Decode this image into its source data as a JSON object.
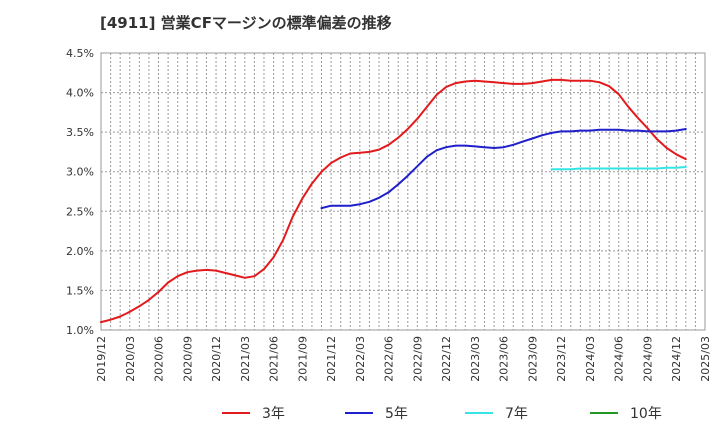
{
  "title": "[4911]  営業CFマージンの標準偏差の推移",
  "chart_data": {
    "type": "line",
    "title": "[4911]  営業CFマージンの標準偏差の推移",
    "xlabel": "",
    "ylabel": "",
    "ylim": [
      1.0,
      4.5
    ],
    "y_ticks": [
      "1.0%",
      "1.5%",
      "2.0%",
      "2.5%",
      "3.0%",
      "3.5%",
      "4.0%",
      "4.5%"
    ],
    "x_ticks": [
      "2019/12",
      "2020/03",
      "2020/06",
      "2020/09",
      "2020/12",
      "2021/03",
      "2021/06",
      "2021/09",
      "2021/12",
      "2022/03",
      "2022/06",
      "2022/09",
      "2022/12",
      "2023/03",
      "2023/06",
      "2023/09",
      "2023/12",
      "2024/03",
      "2024/06",
      "2024/09",
      "2024/12",
      "2025/03"
    ],
    "grid": true,
    "legend_position": "bottom",
    "series": [
      {
        "name": "3年",
        "color": "#e31a1c",
        "points": [
          [
            "2019/12",
            1.1
          ],
          [
            "2020/01",
            1.13
          ],
          [
            "2020/02",
            1.17
          ],
          [
            "2020/03",
            1.23
          ],
          [
            "2020/04",
            1.3
          ],
          [
            "2020/05",
            1.38
          ],
          [
            "2020/06",
            1.48
          ],
          [
            "2020/07",
            1.6
          ],
          [
            "2020/08",
            1.68
          ],
          [
            "2020/09",
            1.73
          ],
          [
            "2020/10",
            1.75
          ],
          [
            "2020/11",
            1.76
          ],
          [
            "2020/12",
            1.75
          ],
          [
            "2021/01",
            1.72
          ],
          [
            "2021/02",
            1.69
          ],
          [
            "2021/03",
            1.66
          ],
          [
            "2021/04",
            1.68
          ],
          [
            "2021/05",
            1.77
          ],
          [
            "2021/06",
            1.92
          ],
          [
            "2021/07",
            2.14
          ],
          [
            "2021/08",
            2.43
          ],
          [
            "2021/09",
            2.66
          ],
          [
            "2021/10",
            2.85
          ],
          [
            "2021/11",
            3.0
          ],
          [
            "2021/12",
            3.11
          ],
          [
            "2022/01",
            3.18
          ],
          [
            "2022/02",
            3.23
          ],
          [
            "2022/03",
            3.24
          ],
          [
            "2022/04",
            3.25
          ],
          [
            "2022/05",
            3.28
          ],
          [
            "2022/06",
            3.34
          ],
          [
            "2022/07",
            3.43
          ],
          [
            "2022/08",
            3.54
          ],
          [
            "2022/09",
            3.67
          ],
          [
            "2022/10",
            3.82
          ],
          [
            "2022/11",
            3.97
          ],
          [
            "2022/12",
            4.07
          ],
          [
            "2023/01",
            4.12
          ],
          [
            "2023/02",
            4.14
          ],
          [
            "2023/03",
            4.15
          ],
          [
            "2023/04",
            4.14
          ],
          [
            "2023/05",
            4.13
          ],
          [
            "2023/06",
            4.12
          ],
          [
            "2023/07",
            4.11
          ],
          [
            "2023/08",
            4.11
          ],
          [
            "2023/09",
            4.12
          ],
          [
            "2023/10",
            4.14
          ],
          [
            "2023/11",
            4.16
          ],
          [
            "2023/12",
            4.16
          ],
          [
            "2024/01",
            4.15
          ],
          [
            "2024/02",
            4.15
          ],
          [
            "2024/03",
            4.15
          ],
          [
            "2024/04",
            4.13
          ],
          [
            "2024/05",
            4.08
          ],
          [
            "2024/06",
            3.98
          ],
          [
            "2024/07",
            3.82
          ],
          [
            "2024/08",
            3.68
          ],
          [
            "2024/09",
            3.55
          ],
          [
            "2024/10",
            3.41
          ],
          [
            "2024/11",
            3.3
          ],
          [
            "2024/12",
            3.22
          ],
          [
            "2025/01",
            3.16
          ]
        ]
      },
      {
        "name": "5年",
        "color": "#1f1fcc",
        "points": [
          [
            "2021/11",
            2.54
          ],
          [
            "2021/12",
            2.57
          ],
          [
            "2022/01",
            2.57
          ],
          [
            "2022/02",
            2.57
          ],
          [
            "2022/03",
            2.59
          ],
          [
            "2022/04",
            2.62
          ],
          [
            "2022/05",
            2.67
          ],
          [
            "2022/06",
            2.74
          ],
          [
            "2022/07",
            2.84
          ],
          [
            "2022/08",
            2.95
          ],
          [
            "2022/09",
            3.07
          ],
          [
            "2022/10",
            3.19
          ],
          [
            "2022/11",
            3.27
          ],
          [
            "2022/12",
            3.31
          ],
          [
            "2023/01",
            3.33
          ],
          [
            "2023/02",
            3.33
          ],
          [
            "2023/03",
            3.32
          ],
          [
            "2023/04",
            3.31
          ],
          [
            "2023/05",
            3.3
          ],
          [
            "2023/06",
            3.31
          ],
          [
            "2023/07",
            3.34
          ],
          [
            "2023/08",
            3.38
          ],
          [
            "2023/09",
            3.42
          ],
          [
            "2023/10",
            3.46
          ],
          [
            "2023/11",
            3.49
          ],
          [
            "2023/12",
            3.51
          ],
          [
            "2024/01",
            3.51
          ],
          [
            "2024/02",
            3.52
          ],
          [
            "2024/03",
            3.52
          ],
          [
            "2024/04",
            3.53
          ],
          [
            "2024/05",
            3.53
          ],
          [
            "2024/06",
            3.53
          ],
          [
            "2024/07",
            3.52
          ],
          [
            "2024/08",
            3.52
          ],
          [
            "2024/09",
            3.51
          ],
          [
            "2024/10",
            3.51
          ],
          [
            "2024/11",
            3.51
          ],
          [
            "2024/12",
            3.52
          ],
          [
            "2025/01",
            3.54
          ]
        ]
      },
      {
        "name": "7年",
        "color": "#33e5e5",
        "points": [
          [
            "2023/11",
            3.03
          ],
          [
            "2023/12",
            3.03
          ],
          [
            "2024/01",
            3.03
          ],
          [
            "2024/02",
            3.04
          ],
          [
            "2024/03",
            3.04
          ],
          [
            "2024/04",
            3.04
          ],
          [
            "2024/05",
            3.04
          ],
          [
            "2024/06",
            3.04
          ],
          [
            "2024/07",
            3.04
          ],
          [
            "2024/08",
            3.04
          ],
          [
            "2024/09",
            3.04
          ],
          [
            "2024/10",
            3.04
          ],
          [
            "2024/11",
            3.05
          ],
          [
            "2024/12",
            3.05
          ],
          [
            "2025/01",
            3.06
          ]
        ]
      },
      {
        "name": "10年",
        "color": "#229922",
        "points": []
      }
    ]
  }
}
